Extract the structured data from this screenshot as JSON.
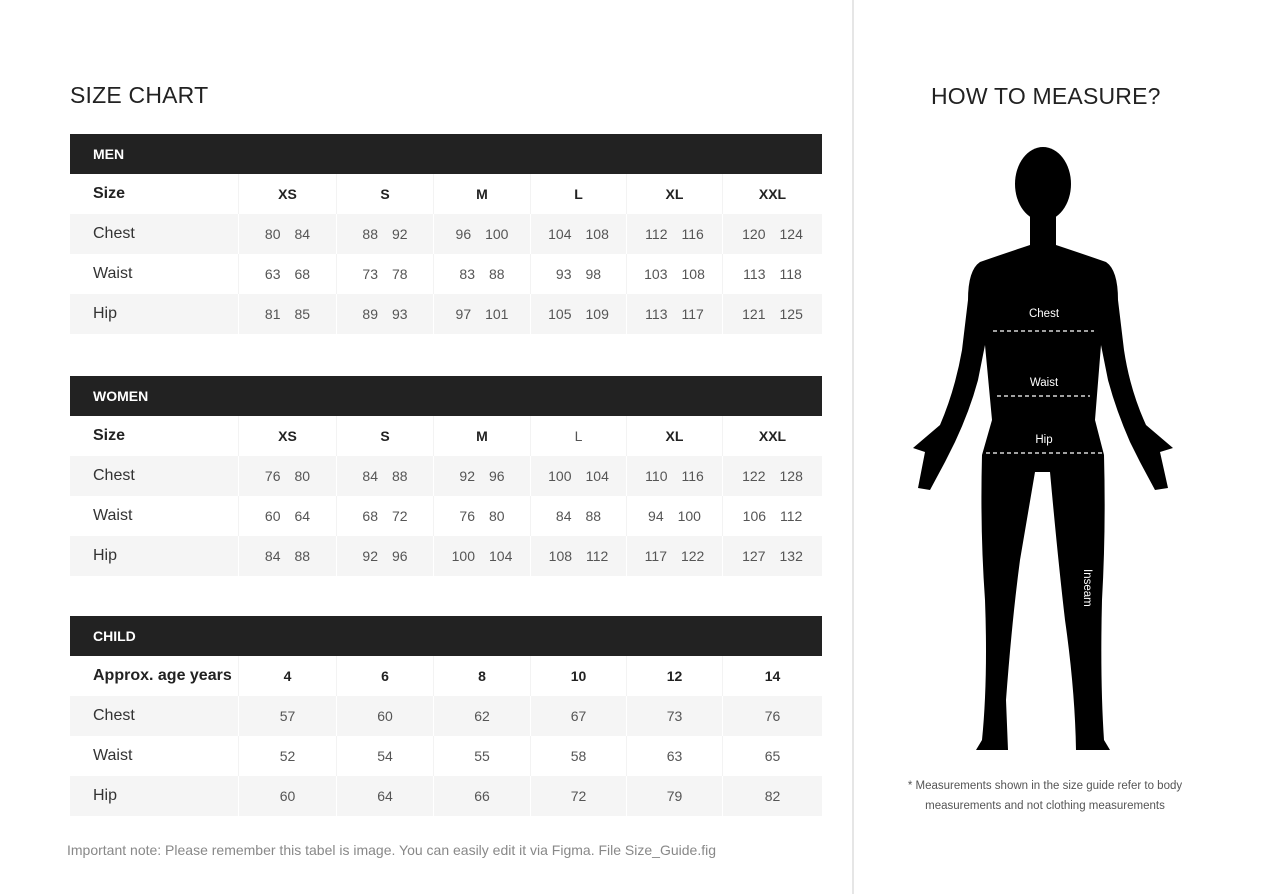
{
  "left": {
    "title": "SIZE CHART",
    "sections": [
      {
        "header": "MEN",
        "columns_label": "Size",
        "columns": [
          "XS",
          "S",
          "M",
          "L",
          "XL",
          "XXL"
        ],
        "rows": [
          {
            "label": "Chest",
            "values": [
              [
                "80",
                "84"
              ],
              [
                "88",
                "92"
              ],
              [
                "96",
                "100"
              ],
              [
                "104",
                "108"
              ],
              [
                "112",
                "116"
              ],
              [
                "120",
                "124"
              ]
            ]
          },
          {
            "label": "Waist",
            "values": [
              [
                "63",
                "68"
              ],
              [
                "73",
                "78"
              ],
              [
                "83",
                "88"
              ],
              [
                "93",
                "98"
              ],
              [
                "103",
                "108"
              ],
              [
                "113",
                "118"
              ]
            ]
          },
          {
            "label": "Hip",
            "values": [
              [
                "81",
                "85"
              ],
              [
                "89",
                "93"
              ],
              [
                "97",
                "101"
              ],
              [
                "105",
                "109"
              ],
              [
                "113",
                "117"
              ],
              [
                "121",
                "125"
              ]
            ]
          }
        ]
      },
      {
        "header": "WOMEN",
        "columns_label": "Size",
        "columns": [
          "XS",
          "S",
          "M",
          "L",
          "XL",
          "XXL"
        ],
        "rows": [
          {
            "label": "Chest",
            "values": [
              [
                "76",
                "80"
              ],
              [
                "84",
                "88"
              ],
              [
                "92",
                "96"
              ],
              [
                "100",
                "104"
              ],
              [
                "110",
                "116"
              ],
              [
                "122",
                "128"
              ]
            ]
          },
          {
            "label": "Waist",
            "values": [
              [
                "60",
                "64"
              ],
              [
                "68",
                "72"
              ],
              [
                "76",
                "80"
              ],
              [
                "84",
                "88"
              ],
              [
                "94",
                "100"
              ],
              [
                "106",
                "112"
              ]
            ]
          },
          {
            "label": "Hip",
            "values": [
              [
                "84",
                "88"
              ],
              [
                "92",
                "96"
              ],
              [
                "100",
                "104"
              ],
              [
                "108",
                "112"
              ],
              [
                "117",
                "122"
              ],
              [
                "127",
                "132"
              ]
            ]
          }
        ]
      },
      {
        "header": "CHILD",
        "columns_label": "Approx. age years",
        "columns": [
          "4",
          "6",
          "8",
          "10",
          "12",
          "14"
        ],
        "rows": [
          {
            "label": "Chest",
            "values": [
              [
                "57"
              ],
              [
                "60"
              ],
              [
                "62"
              ],
              [
                "67"
              ],
              [
                "73"
              ],
              [
                "76"
              ]
            ]
          },
          {
            "label": "Waist",
            "values": [
              [
                "52"
              ],
              [
                "54"
              ],
              [
                "55"
              ],
              [
                "58"
              ],
              [
                "63"
              ],
              [
                "65"
              ]
            ]
          },
          {
            "label": "Hip",
            "values": [
              [
                "60"
              ],
              [
                "64"
              ],
              [
                "66"
              ],
              [
                "72"
              ],
              [
                "79"
              ],
              [
                "82"
              ]
            ]
          }
        ]
      }
    ],
    "note": "Important note: Please remember this tabel is image. You can easily edit it via Figma. File Size_Guide.fig"
  },
  "right": {
    "title": "HOW TO MEASURE?",
    "figure_labels": {
      "chest": "Chest",
      "waist": "Waist",
      "hip": "Hip",
      "inseam": "Inseam"
    },
    "footnote_line1": "* Measurements shown in the size guide refer to body",
    "footnote_line2": "measurements and not clothing measurements"
  },
  "colors": {
    "header_bg": "#222222",
    "alt_row": "#f5f5f5",
    "silhouette": "#000000"
  }
}
